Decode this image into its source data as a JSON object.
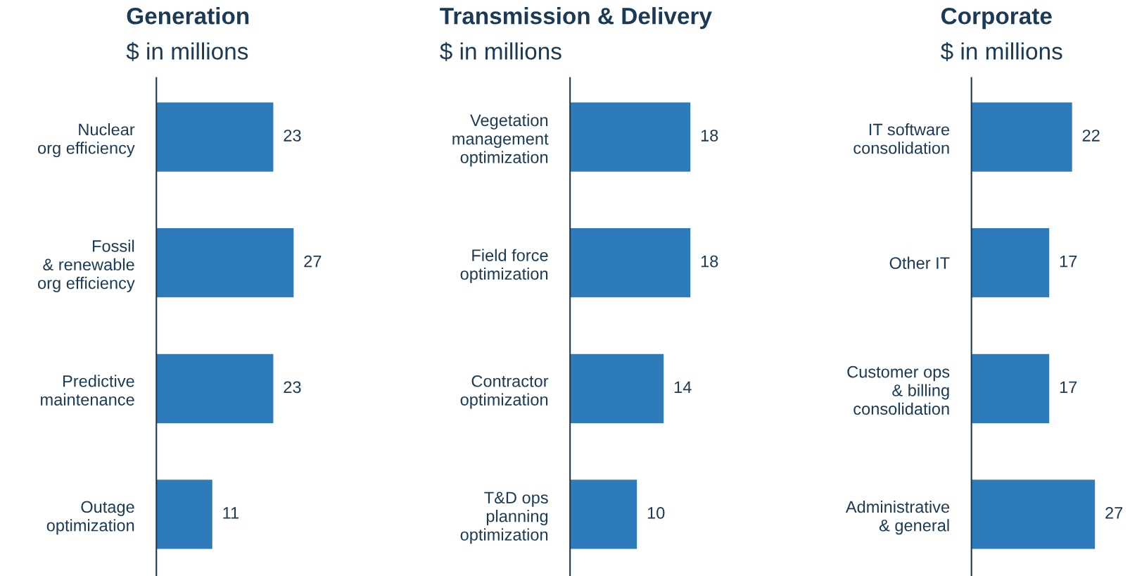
{
  "chart_data": [
    {
      "type": "bar",
      "orientation": "horizontal",
      "title": "Generation",
      "subtitle": "$ in millions",
      "categories": [
        "Nuclear\norg efficiency",
        "Fossil\n& renewable\norg efficiency",
        "Predictive\nmaintenance",
        "Outage\noptimization"
      ],
      "values": [
        23,
        27,
        23,
        11
      ],
      "color": "#2e7bbb",
      "data_labels": true,
      "tick_labels": "y"
    },
    {
      "type": "bar",
      "orientation": "horizontal",
      "title": "Transmission & Delivery",
      "subtitle": "$ in millions",
      "categories": [
        "Vegetation\nmanagement\noptimization",
        "Field force\noptimization",
        "Contractor\noptimization",
        "T&D ops\nplanning\noptimization"
      ],
      "values": [
        18,
        18,
        14,
        10
      ],
      "color": "#2e7bbb",
      "data_labels": true,
      "tick_labels": "y"
    },
    {
      "type": "bar",
      "orientation": "horizontal",
      "title": "Corporate",
      "subtitle": "$ in millions",
      "categories": [
        "IT software\nconsolidation",
        "Other IT",
        "Customer ops\n& billing\nconsolidation",
        "Administrative\n& general"
      ],
      "values": [
        22,
        17,
        17,
        27
      ],
      "color": "#2e7bbb",
      "data_labels": true,
      "tick_labels": "y"
    }
  ]
}
